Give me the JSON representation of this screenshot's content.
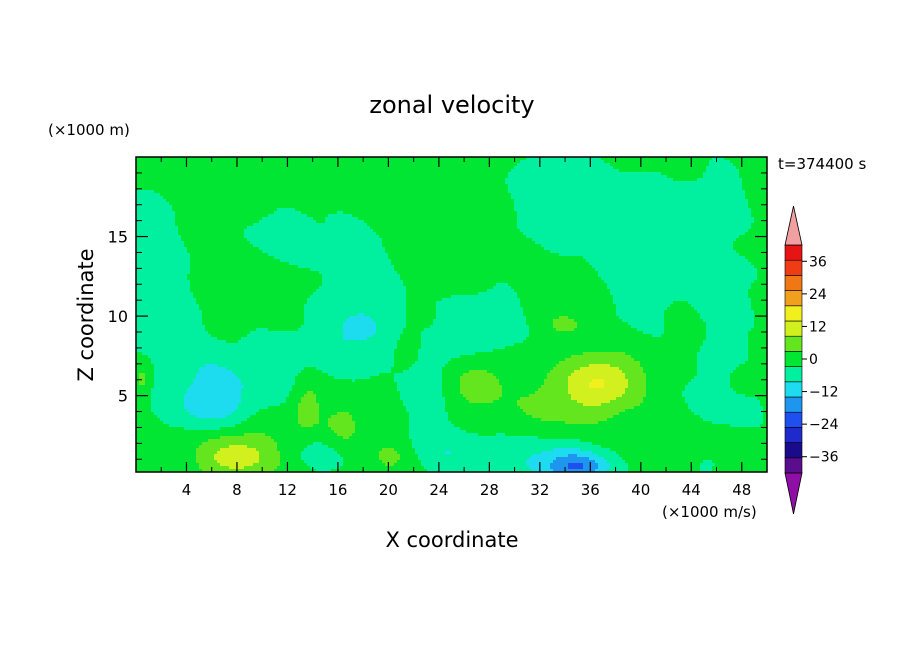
{
  "chart_data": {
    "type": "heatmap",
    "title": "zonal velocity",
    "xlabel": "X coordinate",
    "ylabel": "Z coordinate",
    "x_unit": "(×1000 m/s)",
    "y_unit": "(×1000 m)",
    "time_label": "t=374400 s",
    "xlim": [
      0,
      50
    ],
    "ylim": [
      0.2,
      20
    ],
    "x_ticks": [
      4,
      8,
      12,
      16,
      20,
      24,
      28,
      32,
      36,
      40,
      44,
      48
    ],
    "y_ticks": [
      5,
      10,
      15
    ],
    "colorbar": {
      "levels": [
        -42,
        -36,
        -30,
        -24,
        -18,
        -12,
        -6,
        0,
        6,
        12,
        18,
        24,
        30,
        36,
        42
      ],
      "labels": [
        36,
        24,
        12,
        0,
        -12,
        -24,
        -36
      ],
      "colors": [
        "#5a0d8c",
        "#1a0a8c",
        "#1e2acc",
        "#1e50f0",
        "#1e96f0",
        "#1edcf0",
        "#00f0a0",
        "#00e632",
        "#64e61e",
        "#d2f01e",
        "#f0f01e",
        "#f0a01e",
        "#f07814",
        "#f03c14",
        "#e61414"
      ],
      "below_color": "#8e0ea6",
      "above_color": "#f0a0a0"
    },
    "background_value": 2,
    "features": [
      {
        "x": 18,
        "z": 11.5,
        "sx": 3.0,
        "sz": 3.5,
        "v": -6
      },
      {
        "x": 17,
        "z": 8.5,
        "sx": 4.0,
        "sz": 2.0,
        "v": -6
      },
      {
        "x": 33,
        "z": 17.5,
        "sx": 4.0,
        "sz": 3.0,
        "v": -5
      },
      {
        "x": 40,
        "z": 14.0,
        "sx": 3.5,
        "sz": 4.5,
        "v": -6
      },
      {
        "x": 46,
        "z": 17.0,
        "sx": 2.5,
        "sz": 2.5,
        "v": -5
      },
      {
        "x": 47,
        "z": 11.0,
        "sx": 2.5,
        "sz": 3.0,
        "v": -4
      },
      {
        "x": 47,
        "z": 5.5,
        "sx": 3.0,
        "sz": 2.5,
        "v": -6
      },
      {
        "x": 44,
        "z": 1.0,
        "sx": 2.5,
        "sz": 1.5,
        "v": -5
      },
      {
        "x": 6,
        "z": 5.5,
        "sx": 3.0,
        "sz": 2.5,
        "v": -9
      },
      {
        "x": 6,
        "z": 4.0,
        "sx": 3.5,
        "sz": 1.5,
        "v": -6
      },
      {
        "x": 11,
        "z": 6.5,
        "sx": 3.0,
        "sz": 2.0,
        "v": -6
      },
      {
        "x": 2,
        "z": 11.0,
        "sx": 3.0,
        "sz": 5.0,
        "v": -4
      },
      {
        "x": 1,
        "z": 15.5,
        "sx": 2.0,
        "sz": 2.0,
        "v": -4
      },
      {
        "x": 23,
        "z": 5.5,
        "sx": 2.0,
        "sz": 3.5,
        "v": -5
      },
      {
        "x": 27,
        "z": 8.5,
        "sx": 2.5,
        "sz": 2.0,
        "v": -5
      },
      {
        "x": 35,
        "z": 0.5,
        "sx": 2.5,
        "sz": 0.9,
        "v": -16
      },
      {
        "x": 32,
        "z": 1.0,
        "sx": 5.0,
        "sz": 1.5,
        "v": -8
      },
      {
        "x": 25,
        "z": 1.5,
        "sx": 2.5,
        "sz": 1.5,
        "v": -6
      },
      {
        "x": 15,
        "z": 1.5,
        "sx": 3.0,
        "sz": 1.3,
        "v": -5
      },
      {
        "x": 12,
        "z": 15.0,
        "sx": 4.0,
        "sz": 2.0,
        "v": -4
      },
      {
        "x": 28,
        "z": 10.0,
        "sx": 3.0,
        "sz": 2.0,
        "v": -4
      },
      {
        "x": 8,
        "z": 1.0,
        "sx": 3.0,
        "sz": 1.2,
        "v": 12
      },
      {
        "x": 8,
        "z": 2.5,
        "sx": 4.5,
        "sz": 1.5,
        "v": 5
      },
      {
        "x": 13.5,
        "z": 4.5,
        "sx": 1.3,
        "sz": 2.0,
        "v": 7
      },
      {
        "x": 16.5,
        "z": 3.0,
        "sx": 1.5,
        "sz": 1.5,
        "v": 7
      },
      {
        "x": 20,
        "z": 1.2,
        "sx": 1.5,
        "sz": 1.0,
        "v": 6
      },
      {
        "x": 37,
        "z": 6.0,
        "sx": 3.0,
        "sz": 1.7,
        "v": 14
      },
      {
        "x": 34,
        "z": 4.5,
        "sx": 4.5,
        "sz": 2.0,
        "v": 6
      },
      {
        "x": 27,
        "z": 6.0,
        "sx": 2.0,
        "sz": 1.8,
        "v": 8
      },
      {
        "x": 21.5,
        "z": 8.0,
        "sx": 1.0,
        "sz": 1.2,
        "v": 6
      },
      {
        "x": 43,
        "z": 1.5,
        "sx": 3.0,
        "sz": 1.2,
        "v": 6
      },
      {
        "x": 48,
        "z": 6.0,
        "sx": 1.5,
        "sz": 1.2,
        "v": 6
      },
      {
        "x": 34,
        "z": 9.5,
        "sx": 1.2,
        "sz": 0.6,
        "v": 7
      },
      {
        "x": 0.5,
        "z": 6.0,
        "sx": 0.6,
        "sz": 1.0,
        "v": 7
      }
    ]
  }
}
